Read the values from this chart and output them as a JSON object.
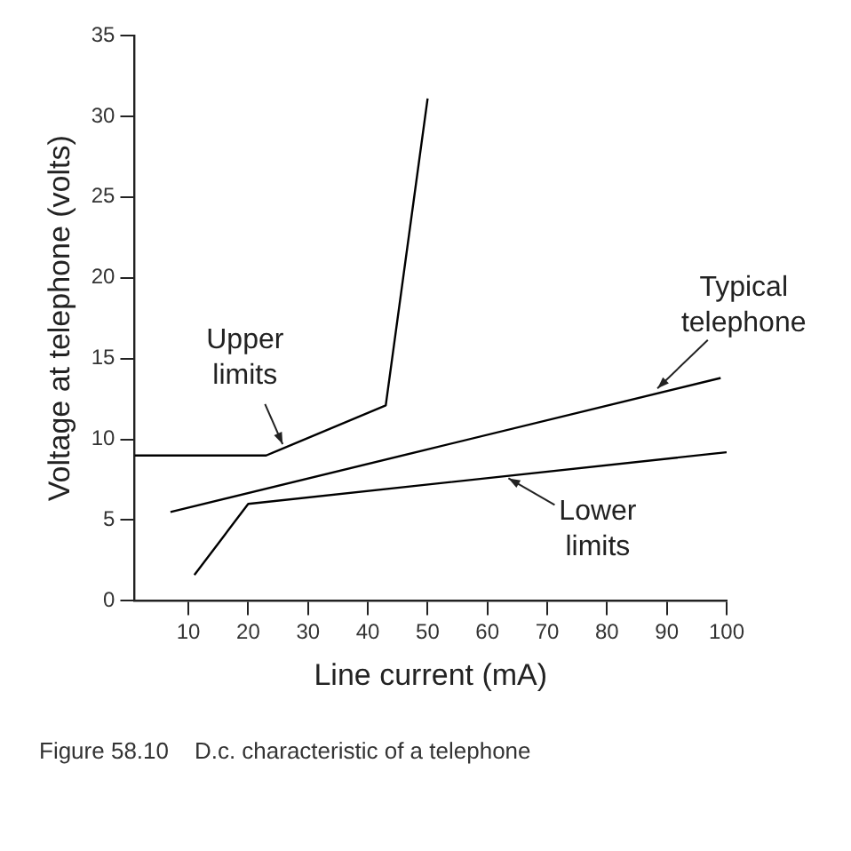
{
  "chart_data": {
    "type": "line",
    "xlabel": "Line current (mA)",
    "ylabel": "Voltage at telephone (volts)",
    "xlim": [
      1,
      100
    ],
    "xticks": [
      10,
      20,
      30,
      40,
      50,
      60,
      70,
      80,
      90,
      100
    ],
    "ylim": [
      0,
      35
    ],
    "yticks": [
      0,
      5,
      10,
      15,
      20,
      25,
      30,
      35
    ],
    "series": [
      {
        "color": "#000000",
        "x": [
          1,
          23,
          43,
          50
        ],
        "values": [
          9,
          9,
          12.1,
          31.1
        ]
      },
      {
        "color": "#000000",
        "x": [
          7,
          99
        ],
        "values": [
          5.5,
          13.8
        ]
      },
      {
        "color": "#000000",
        "x": [
          11,
          20,
          100
        ],
        "values": [
          1.6,
          6,
          9.2
        ]
      }
    ],
    "annotations": [
      {
        "text": "Upper limits",
        "x": 26,
        "y": 9.5
      },
      {
        "text": "Typical telephone",
        "x": 88,
        "y": 13
      },
      {
        "text": "Lower limits",
        "x": 63,
        "y": 7.7
      },
      "Figure 58.10    D.c. characteristic of a telephone"
    ],
    "grid": false,
    "legend": false,
    "marker": "none",
    "line_style": "solid"
  }
}
